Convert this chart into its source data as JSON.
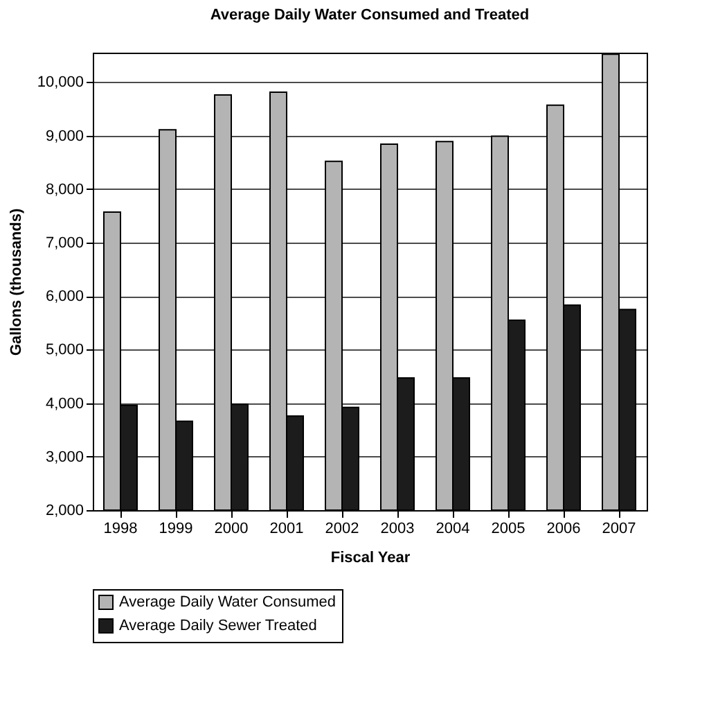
{
  "chart_data": {
    "type": "bar",
    "title": "Average Daily Water Consumed and Treated",
    "xlabel": "Fiscal Year",
    "ylabel": "Gallons (thousands)",
    "categories": [
      "1998",
      "1999",
      "2000",
      "2001",
      "2002",
      "2003",
      "2004",
      "2005",
      "2006",
      "2007"
    ],
    "series": [
      {
        "name": "Average Daily Water Consumed",
        "color": "#b4b4b4",
        "values": [
          7570,
          9110,
          9760,
          9810,
          8520,
          8840,
          8890,
          8990,
          9570,
          10520
        ]
      },
      {
        "name": "Average Daily Sewer Treated",
        "color": "#1c1c1c",
        "values": [
          3960,
          3660,
          3980,
          3760,
          3920,
          4470,
          4470,
          5550,
          5830,
          5750
        ]
      }
    ],
    "ylim": [
      2000,
      10550
    ],
    "yticks": [
      {
        "value": 2000,
        "label": "2,000"
      },
      {
        "value": 3000,
        "label": "3,000"
      },
      {
        "value": 4000,
        "label": "4,000"
      },
      {
        "value": 5000,
        "label": "5,000"
      },
      {
        "value": 6000,
        "label": "6,000"
      },
      {
        "value": 7000,
        "label": "7,000"
      },
      {
        "value": 8000,
        "label": "8,000"
      },
      {
        "value": 9000,
        "label": "9,000"
      },
      {
        "value": 10000,
        "label": "10,000"
      }
    ],
    "grid": "y",
    "legend": "bottom"
  }
}
